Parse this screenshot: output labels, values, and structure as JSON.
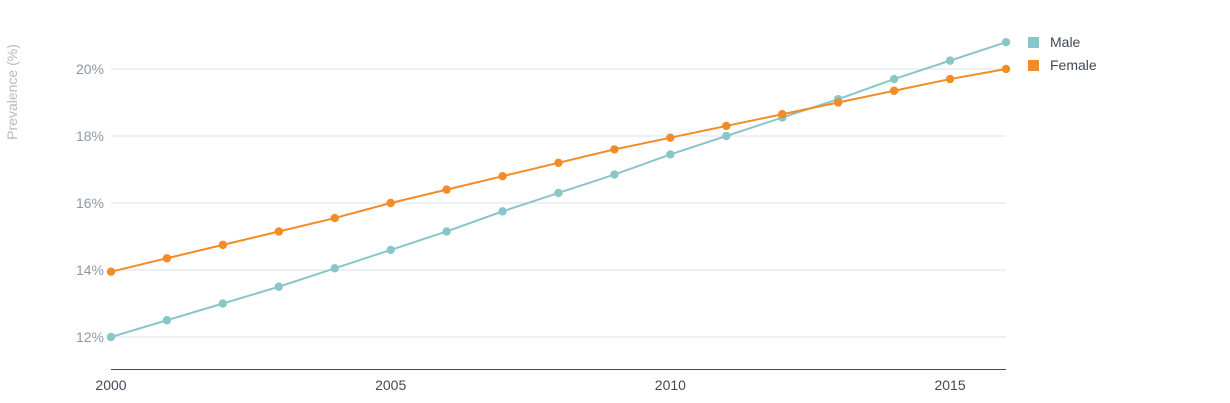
{
  "chart_data": {
    "type": "line",
    "ylabel": "Prevalence (%)",
    "xlabel": "",
    "x": [
      2000,
      2001,
      2002,
      2003,
      2004,
      2005,
      2006,
      2007,
      2008,
      2009,
      2010,
      2011,
      2012,
      2013,
      2014,
      2015,
      2016
    ],
    "xticks": [
      2000,
      2005,
      2010,
      2015
    ],
    "xtick_labels": [
      "2000",
      "2005",
      "2010",
      "2015"
    ],
    "yticks": [
      12,
      14,
      16,
      18,
      20
    ],
    "ytick_labels": [
      "12%",
      "14%",
      "16%",
      "18%",
      "20%"
    ],
    "xlim": [
      2000,
      2016
    ],
    "ylim": [
      11.1,
      21.0
    ],
    "grid": true,
    "legend_position": "top-right",
    "series": [
      {
        "name": "Male",
        "color": "#8ac6c8",
        "values": [
          12.0,
          12.5,
          13.0,
          13.5,
          14.05,
          14.6,
          15.15,
          15.75,
          16.3,
          16.85,
          17.45,
          18.0,
          18.55,
          19.1,
          19.7,
          20.25,
          20.8
        ]
      },
      {
        "name": "Female",
        "color": "#f28c28",
        "values": [
          13.95,
          14.35,
          14.75,
          15.15,
          15.55,
          16.0,
          16.4,
          16.8,
          17.2,
          17.6,
          17.95,
          18.3,
          18.65,
          19.0,
          19.35,
          19.7,
          20.0
        ]
      }
    ]
  }
}
